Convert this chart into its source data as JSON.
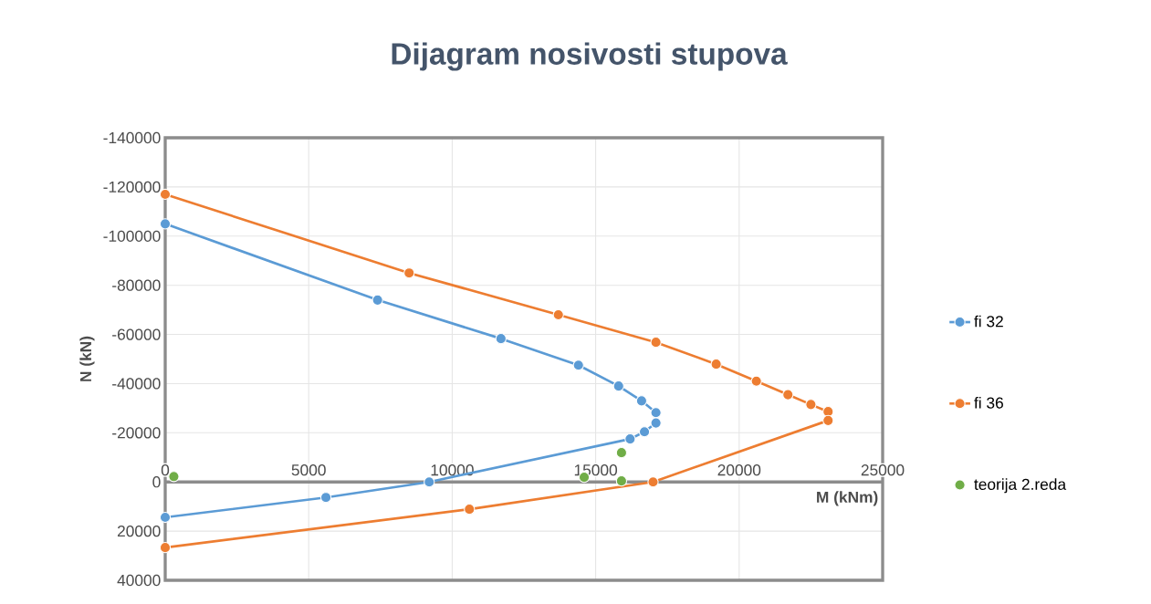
{
  "chart_data": {
    "type": "line",
    "title": "Dijagram nosivosti stupova",
    "xlabel": "M (kNm)",
    "ylabel": "N (kN)",
    "xlim": [
      0,
      25000
    ],
    "xticks": [
      0,
      5000,
      10000,
      15000,
      20000,
      25000
    ],
    "ylim": [
      40000,
      -140000
    ],
    "yticks": [
      -140000,
      -120000,
      -100000,
      -80000,
      -60000,
      -40000,
      -20000,
      0,
      20000,
      40000
    ],
    "grid": true,
    "legend": "right",
    "marker": "circle",
    "line_style": "solid",
    "series": [
      {
        "name": "fi 32",
        "color": "#5b9bd5",
        "x": [
          0,
          7400,
          11700,
          14400,
          15800,
          16600,
          17100,
          17100,
          16700,
          16200,
          9200,
          5600,
          0
        ],
        "values": [
          -105000,
          -74000,
          -58300,
          -47500,
          -39000,
          -33000,
          -28200,
          -24000,
          -20400,
          -17500,
          0,
          6300,
          14400
        ]
      },
      {
        "name": "fi 36",
        "color": "#ed7d31",
        "x": [
          0,
          8500,
          13700,
          17100,
          19200,
          20600,
          21700,
          22500,
          23100,
          23100,
          17000,
          10600,
          0
        ],
        "values": [
          -117000,
          -85000,
          -68000,
          -56800,
          -47900,
          -41000,
          -35500,
          -31500,
          -28600,
          -25000,
          0,
          11100,
          26700
        ]
      },
      {
        "name": "teorija 2.reda",
        "type": "scatter",
        "color": "#70ad47",
        "x": [
          300,
          14600,
          15900,
          15900
        ],
        "values": [
          -2200,
          -1900,
          -11900,
          -400
        ]
      }
    ]
  }
}
